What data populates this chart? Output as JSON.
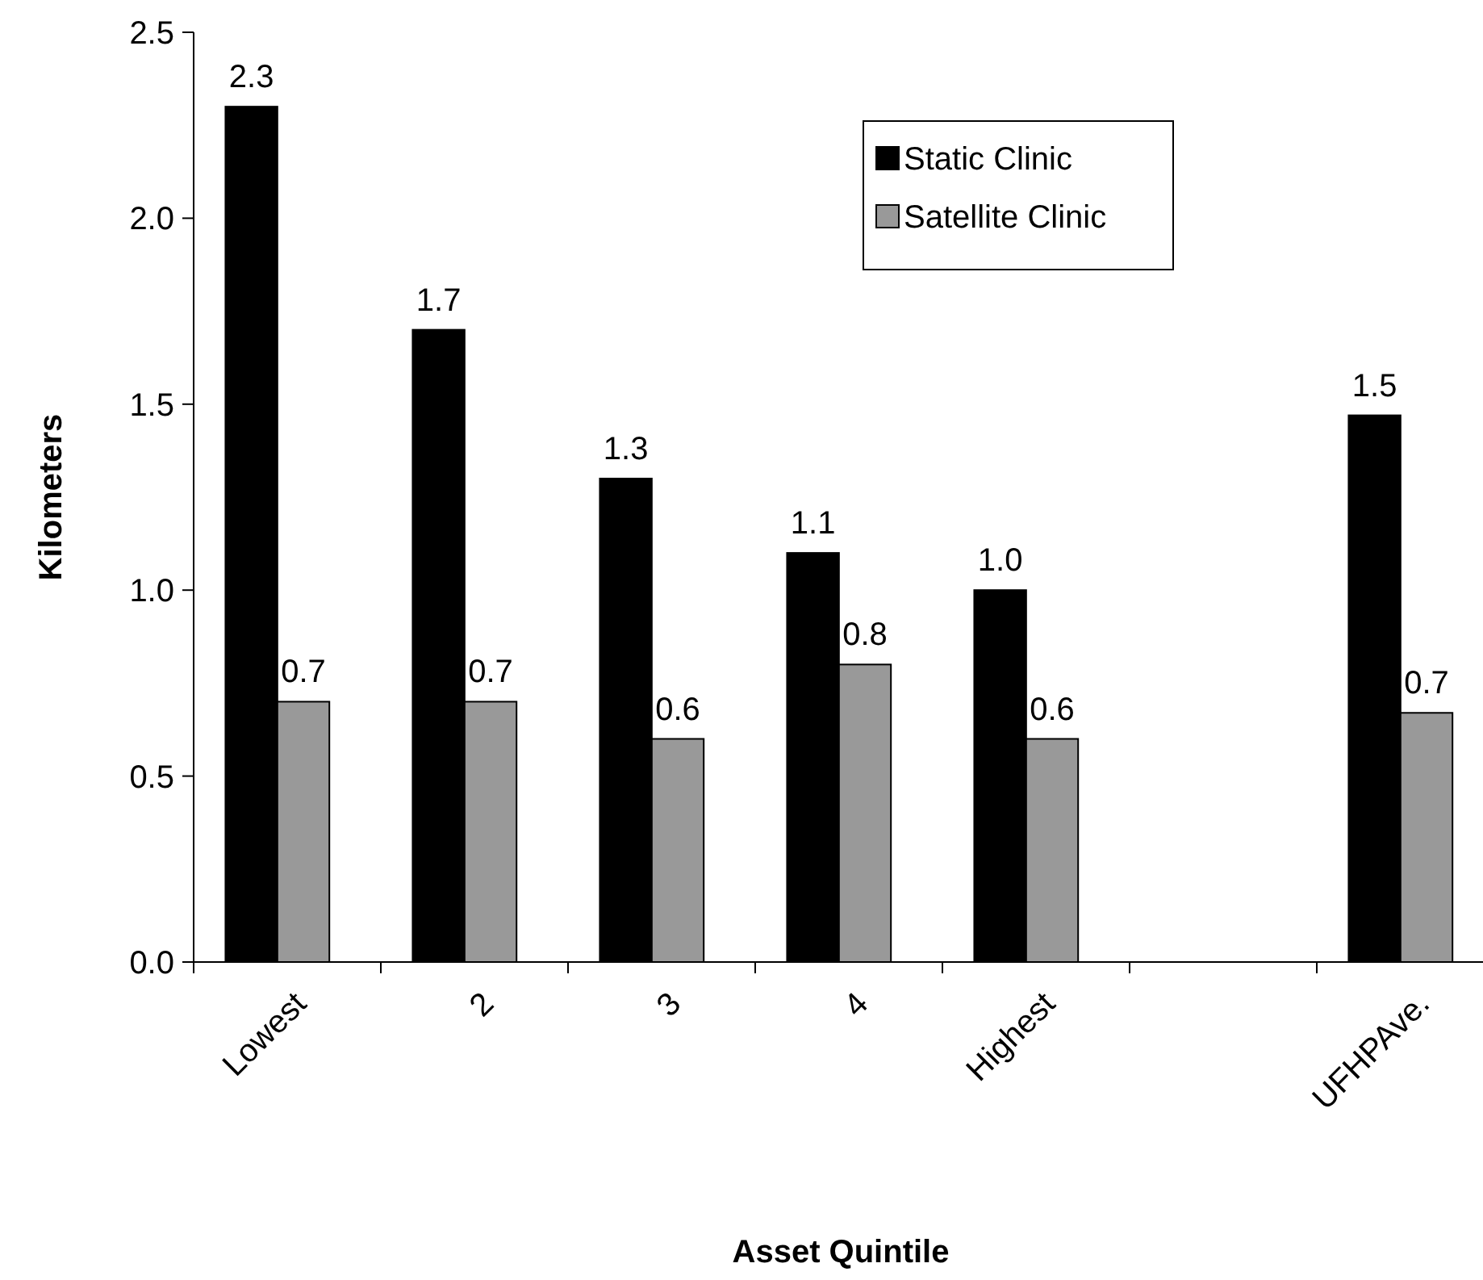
{
  "chart_data": {
    "type": "bar",
    "xlabel": "Asset Quintile",
    "ylabel": "Kilometers",
    "categories": [
      "Lowest",
      "2",
      "3",
      "4",
      "Highest",
      null,
      "UFHPAve."
    ],
    "series": [
      {
        "name": "Static Clinic",
        "color": "#000000",
        "values": [
          2.3,
          1.7,
          1.3,
          1.1,
          1.0,
          null,
          1.47
        ],
        "value_labels": [
          "2.3",
          "1.7",
          "1.3",
          "1.1",
          "1.0",
          null,
          "1.5"
        ]
      },
      {
        "name": "Satellite Clinic",
        "color": "#999999",
        "values": [
          0.7,
          0.7,
          0.6,
          0.8,
          0.6,
          null,
          0.67
        ],
        "value_labels": [
          "0.7",
          "0.7",
          "0.6",
          "0.8",
          "0.6",
          null,
          "0.7"
        ]
      }
    ],
    "ylim": [
      0,
      2.5
    ],
    "yticks": [
      {
        "value": 0,
        "label": "0.0"
      },
      {
        "value": 0.5,
        "label": "0.5"
      },
      {
        "value": 1,
        "label": "1.0"
      },
      {
        "value": 1.5,
        "label": "1.5"
      },
      {
        "value": 2,
        "label": "2.0"
      },
      {
        "value": 2.5,
        "label": "2.5"
      }
    ],
    "grid": false,
    "legend": "top right"
  }
}
